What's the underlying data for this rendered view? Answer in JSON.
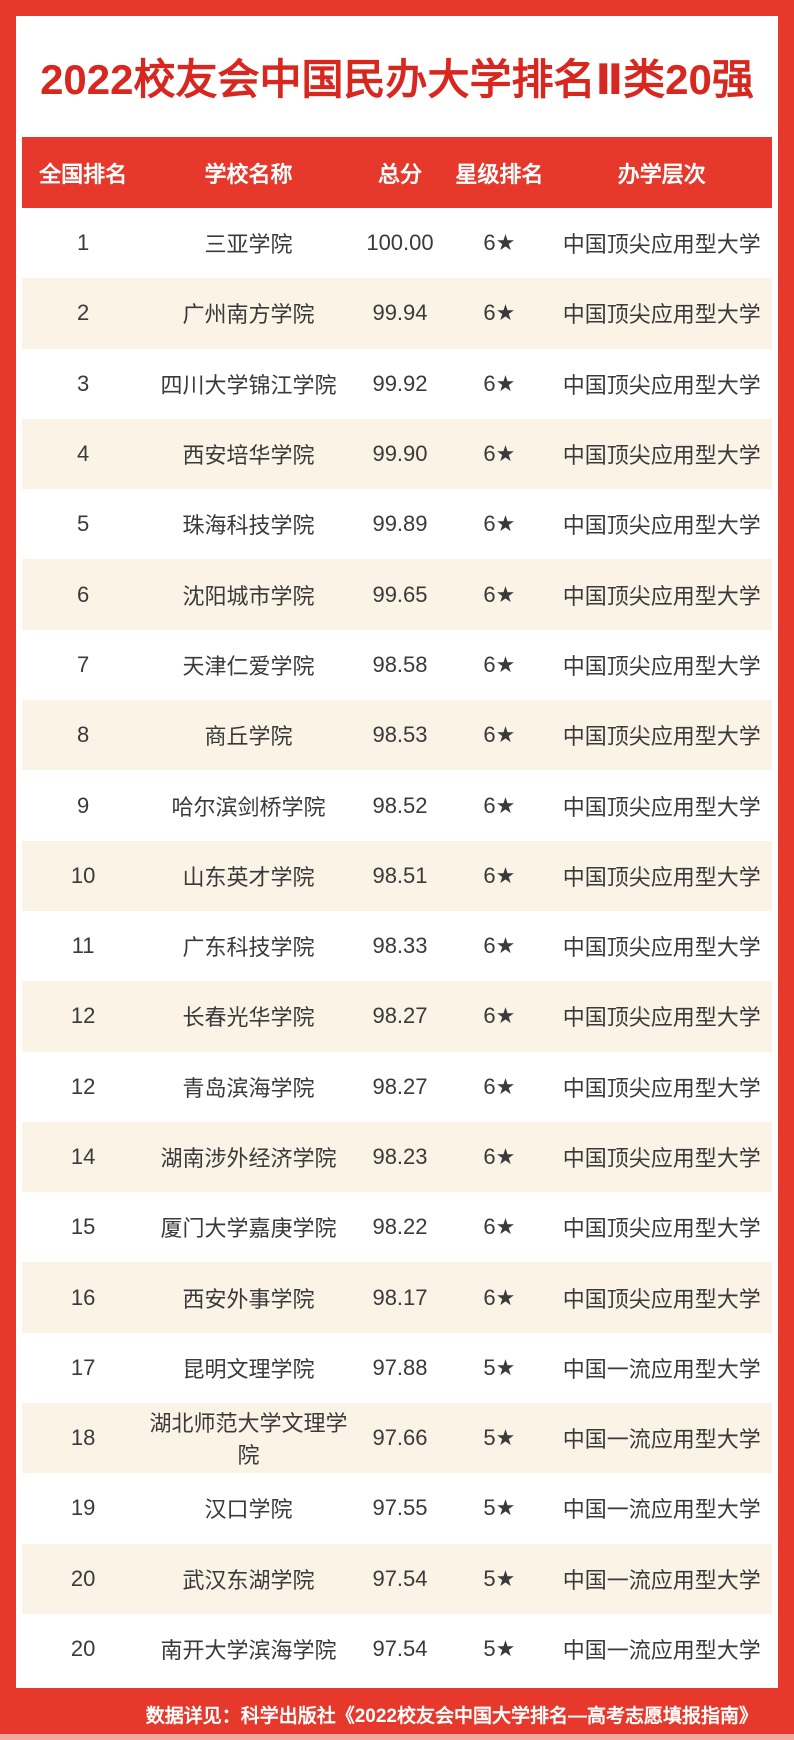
{
  "title": "2022校友会中国民办大学排名Ⅱ类20强",
  "colors": {
    "accent-red": "#E6392B",
    "title-red": "#D8271E",
    "row-cream": "#FBF4E6",
    "text-dark": "#3A3A3A",
    "strip-pink": "#F4A89E"
  },
  "table": {
    "columns": [
      "全国排名",
      "学校名称",
      "总分",
      "星级排名",
      "办学层次"
    ],
    "rows": [
      {
        "rank": "1",
        "name": "三亚学院",
        "score": "100.00",
        "stars": "6★",
        "level": "中国顶尖应用型大学"
      },
      {
        "rank": "2",
        "name": "广州南方学院",
        "score": "99.94",
        "stars": "6★",
        "level": "中国顶尖应用型大学"
      },
      {
        "rank": "3",
        "name": "四川大学锦江学院",
        "score": "99.92",
        "stars": "6★",
        "level": "中国顶尖应用型大学"
      },
      {
        "rank": "4",
        "name": "西安培华学院",
        "score": "99.90",
        "stars": "6★",
        "level": "中国顶尖应用型大学"
      },
      {
        "rank": "5",
        "name": "珠海科技学院",
        "score": "99.89",
        "stars": "6★",
        "level": "中国顶尖应用型大学"
      },
      {
        "rank": "6",
        "name": "沈阳城市学院",
        "score": "99.65",
        "stars": "6★",
        "level": "中国顶尖应用型大学"
      },
      {
        "rank": "7",
        "name": "天津仁爱学院",
        "score": "98.58",
        "stars": "6★",
        "level": "中国顶尖应用型大学"
      },
      {
        "rank": "8",
        "name": "商丘学院",
        "score": "98.53",
        "stars": "6★",
        "level": "中国顶尖应用型大学"
      },
      {
        "rank": "9",
        "name": "哈尔滨剑桥学院",
        "score": "98.52",
        "stars": "6★",
        "level": "中国顶尖应用型大学"
      },
      {
        "rank": "10",
        "name": "山东英才学院",
        "score": "98.51",
        "stars": "6★",
        "level": "中国顶尖应用型大学"
      },
      {
        "rank": "11",
        "name": "广东科技学院",
        "score": "98.33",
        "stars": "6★",
        "level": "中国顶尖应用型大学"
      },
      {
        "rank": "12",
        "name": "长春光华学院",
        "score": "98.27",
        "stars": "6★",
        "level": "中国顶尖应用型大学"
      },
      {
        "rank": "12",
        "name": "青岛滨海学院",
        "score": "98.27",
        "stars": "6★",
        "level": "中国顶尖应用型大学"
      },
      {
        "rank": "14",
        "name": "湖南涉外经济学院",
        "score": "98.23",
        "stars": "6★",
        "level": "中国顶尖应用型大学"
      },
      {
        "rank": "15",
        "name": "厦门大学嘉庚学院",
        "score": "98.22",
        "stars": "6★",
        "level": "中国顶尖应用型大学"
      },
      {
        "rank": "16",
        "name": "西安外事学院",
        "score": "98.17",
        "stars": "6★",
        "level": "中国顶尖应用型大学"
      },
      {
        "rank": "17",
        "name": "昆明文理学院",
        "score": "97.88",
        "stars": "5★",
        "level": "中国一流应用型大学"
      },
      {
        "rank": "18",
        "name": "湖北师范大学文理学院",
        "score": "97.66",
        "stars": "5★",
        "level": "中国一流应用型大学"
      },
      {
        "rank": "19",
        "name": "汉口学院",
        "score": "97.55",
        "stars": "5★",
        "level": "中国一流应用型大学"
      },
      {
        "rank": "20",
        "name": "武汉东湖学院",
        "score": "97.54",
        "stars": "5★",
        "level": "中国一流应用型大学"
      },
      {
        "rank": "20",
        "name": "南开大学滨海学院",
        "score": "97.54",
        "stars": "5★",
        "level": "中国一流应用型大学"
      }
    ]
  },
  "footer": {
    "source": "数据详见：科学出版社《2022校友会中国大学排名—高考志愿填报指南》"
  },
  "chart_data": {
    "type": "table",
    "title": "2022校友会中国民办大学排名Ⅱ类20强",
    "columns": [
      "全国排名",
      "学校名称",
      "总分",
      "星级排名",
      "办学层次"
    ],
    "rows": [
      [
        "1",
        "三亚学院",
        100.0,
        "6★",
        "中国顶尖应用型大学"
      ],
      [
        "2",
        "广州南方学院",
        99.94,
        "6★",
        "中国顶尖应用型大学"
      ],
      [
        "3",
        "四川大学锦江学院",
        99.92,
        "6★",
        "中国顶尖应用型大学"
      ],
      [
        "4",
        "西安培华学院",
        99.9,
        "6★",
        "中国顶尖应用型大学"
      ],
      [
        "5",
        "珠海科技学院",
        99.89,
        "6★",
        "中国顶尖应用型大学"
      ],
      [
        "6",
        "沈阳城市学院",
        99.65,
        "6★",
        "中国顶尖应用型大学"
      ],
      [
        "7",
        "天津仁爱学院",
        98.58,
        "6★",
        "中国顶尖应用型大学"
      ],
      [
        "8",
        "商丘学院",
        98.53,
        "6★",
        "中国顶尖应用型大学"
      ],
      [
        "9",
        "哈尔滨剑桥学院",
        98.52,
        "6★",
        "中国顶尖应用型大学"
      ],
      [
        "10",
        "山东英才学院",
        98.51,
        "6★",
        "中国顶尖应用型大学"
      ],
      [
        "11",
        "广东科技学院",
        98.33,
        "6★",
        "中国顶尖应用型大学"
      ],
      [
        "12",
        "长春光华学院",
        98.27,
        "6★",
        "中国顶尖应用型大学"
      ],
      [
        "12",
        "青岛滨海学院",
        98.27,
        "6★",
        "中国顶尖应用型大学"
      ],
      [
        "14",
        "湖南涉外经济学院",
        98.23,
        "6★",
        "中国顶尖应用型大学"
      ],
      [
        "15",
        "厦门大学嘉庚学院",
        98.22,
        "6★",
        "中国顶尖应用型大学"
      ],
      [
        "16",
        "西安外事学院",
        98.17,
        "6★",
        "中国顶尖应用型大学"
      ],
      [
        "17",
        "昆明文理学院",
        97.88,
        "5★",
        "中国一流应用型大学"
      ],
      [
        "18",
        "湖北师范大学文理学院",
        97.66,
        "5★",
        "中国一流应用型大学"
      ],
      [
        "19",
        "汉口学院",
        97.55,
        "5★",
        "中国一流应用型大学"
      ],
      [
        "20",
        "武汉东湖学院",
        97.54,
        "5★",
        "中国一流应用型大学"
      ],
      [
        "20",
        "南开大学滨海学院",
        97.54,
        "5★",
        "中国一流应用型大学"
      ]
    ]
  }
}
